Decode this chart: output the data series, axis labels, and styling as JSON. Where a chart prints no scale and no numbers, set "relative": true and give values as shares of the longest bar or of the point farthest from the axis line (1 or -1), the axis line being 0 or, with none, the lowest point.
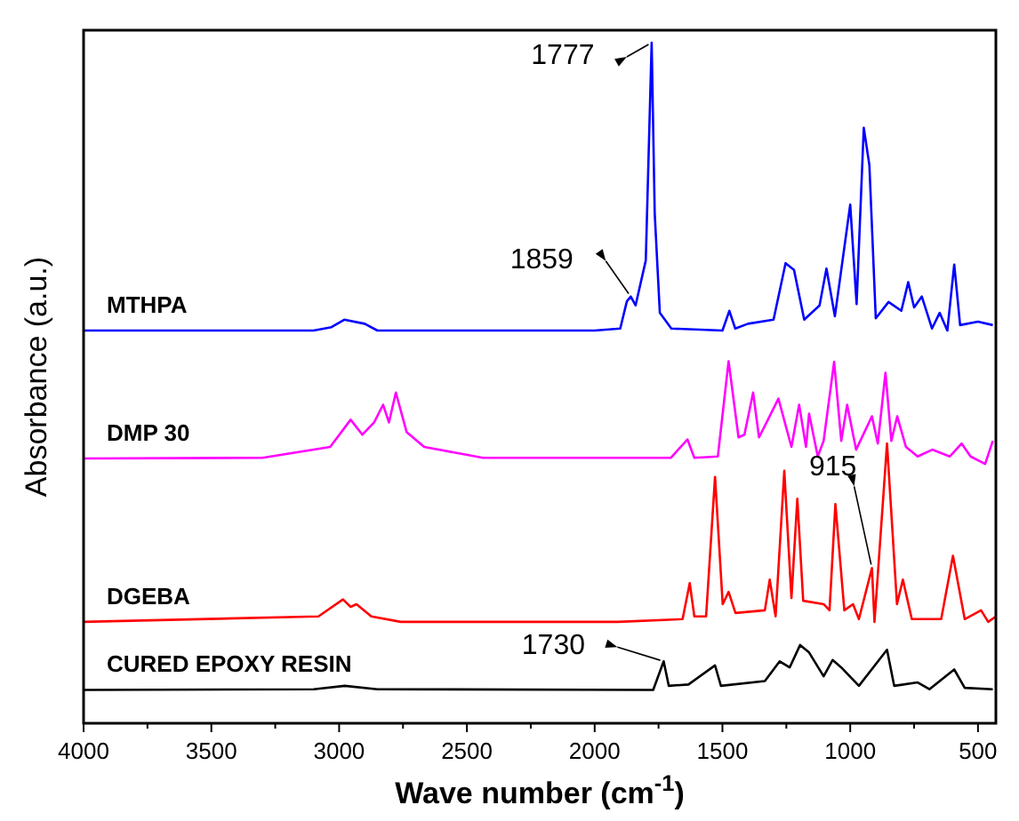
{
  "chart_data": {
    "type": "line",
    "relative": true,
    "xlabel": "Wave number (cm$^{-1}$)",
    "ylabel": "Absorbance (a.u.)",
    "xlim": [
      4000,
      430
    ],
    "xticks": [
      4000,
      {
        "value": 3750,
        "label": null
      },
      3500,
      {
        "value": 3250,
        "label": null
      },
      3000,
      {
        "value": 2750,
        "label": null
      },
      2500,
      {
        "value": 2250,
        "label": null
      },
      2000,
      {
        "value": 1750,
        "label": null
      },
      1500,
      {
        "value": 1250,
        "label": null
      },
      1000,
      {
        "value": 750,
        "label": null
      },
      500
    ],
    "marker": "none",
    "line_style": "solid",
    "series": [
      {
        "name": "MTHPA",
        "color": "#0000ff",
        "x": [
          4000,
          3100,
          3030,
          2980,
          2900,
          2850,
          2000,
          1900,
          1874,
          1859,
          1840,
          1800,
          1777,
          1765,
          1745,
          1700,
          1500,
          1473,
          1450,
          1400,
          1300,
          1253,
          1220,
          1180,
          1120,
          1093,
          1060,
          1000,
          975,
          947,
          925,
          900,
          850,
          800,
          773,
          750,
          720,
          680,
          650,
          620,
          593,
          570,
          500,
          442
        ],
        "values": [
          0.577,
          0.577,
          0.582,
          0.593,
          0.587,
          0.577,
          0.577,
          0.58,
          0.62,
          0.627,
          0.614,
          0.68,
          1.0,
          0.749,
          0.603,
          0.58,
          0.577,
          0.606,
          0.58,
          0.587,
          0.593,
          0.676,
          0.666,
          0.593,
          0.614,
          0.668,
          0.598,
          0.762,
          0.616,
          0.875,
          0.82,
          0.595,
          0.619,
          0.606,
          0.648,
          0.611,
          0.627,
          0.58,
          0.603,
          0.577,
          0.674,
          0.585,
          0.59,
          0.585
        ]
      },
      {
        "name": "DMP 30",
        "color": "#ff00ff",
        "x": [
          4000,
          3300,
          3035,
          2955,
          2909,
          2863,
          2828,
          2805,
          2778,
          2736,
          2667,
          2437,
          1702,
          1637,
          1610,
          1518,
          1476,
          1437,
          1414,
          1380,
          1357,
          1322,
          1281,
          1230,
          1200,
          1173,
          1161,
          1127,
          1104,
          1063,
          1035,
          1012,
          977,
          915,
          892,
          862,
          839,
          816,
          782,
          736,
          679,
          610,
          564,
          529,
          472,
          442
        ],
        "values": [
          0.389,
          0.39,
          0.406,
          0.446,
          0.424,
          0.442,
          0.468,
          0.442,
          0.486,
          0.428,
          0.406,
          0.39,
          0.39,
          0.417,
          0.39,
          0.392,
          0.532,
          0.42,
          0.424,
          0.486,
          0.42,
          0.446,
          0.477,
          0.406,
          0.468,
          0.406,
          0.455,
          0.392,
          0.415,
          0.531,
          0.415,
          0.468,
          0.402,
          0.451,
          0.411,
          0.515,
          0.415,
          0.451,
          0.406,
          0.392,
          0.402,
          0.392,
          0.411,
          0.392,
          0.381,
          0.415
        ]
      },
      {
        "name": "DGEBA",
        "color": "#ff0000",
        "x": [
          4000,
          3081,
          2985,
          2955,
          2932,
          2874,
          2759,
          1909,
          1656,
          1628,
          1610,
          1564,
          1529,
          1499,
          1476,
          1449,
          1334,
          1315,
          1292,
          1258,
          1230,
          1207,
          1184,
          1104,
          1081,
          1058,
          1023,
          989,
          966,
          915,
          905,
          856,
          817,
          794,
          759,
          644,
          598,
          552,
          488,
          460,
          430
        ],
        "values": [
          0.149,
          0.157,
          0.182,
          0.171,
          0.175,
          0.157,
          0.149,
          0.149,
          0.153,
          0.206,
          0.157,
          0.157,
          0.362,
          0.175,
          0.193,
          0.162,
          0.166,
          0.211,
          0.157,
          0.371,
          0.184,
          0.33,
          0.18,
          0.175,
          0.166,
          0.322,
          0.166,
          0.175,
          0.153,
          0.228,
          0.149,
          0.411,
          0.175,
          0.211,
          0.153,
          0.153,
          0.246,
          0.153,
          0.166,
          0.149,
          0.157
        ]
      },
      {
        "name": "CURED EPOXY RESIN",
        "color": "#000000",
        "x": [
          4000,
          3100,
          2978,
          2850,
          1771,
          1730,
          1710,
          1633,
          1529,
          1506,
          1334,
          1276,
          1237,
          1196,
          1161,
          1104,
          1069,
          1035,
          966,
          856,
          828,
          736,
          690,
          593,
          552,
          442
        ],
        "values": [
          0.049,
          0.05,
          0.055,
          0.05,
          0.049,
          0.091,
          0.055,
          0.057,
          0.085,
          0.055,
          0.062,
          0.091,
          0.082,
          0.115,
          0.104,
          0.069,
          0.093,
          0.082,
          0.055,
          0.108,
          0.055,
          0.06,
          0.05,
          0.079,
          0.052,
          0.05
        ]
      }
    ],
    "annotations": [
      {
        "text": "1777",
        "x": 1777,
        "y": 1.0
      },
      {
        "text": "1859",
        "x": 1859,
        "y": 0.627
      },
      {
        "text": "915",
        "x": 915,
        "y": 0.228
      },
      {
        "text": "1730",
        "x": 1730,
        "y": 0.091
      }
    ]
  }
}
